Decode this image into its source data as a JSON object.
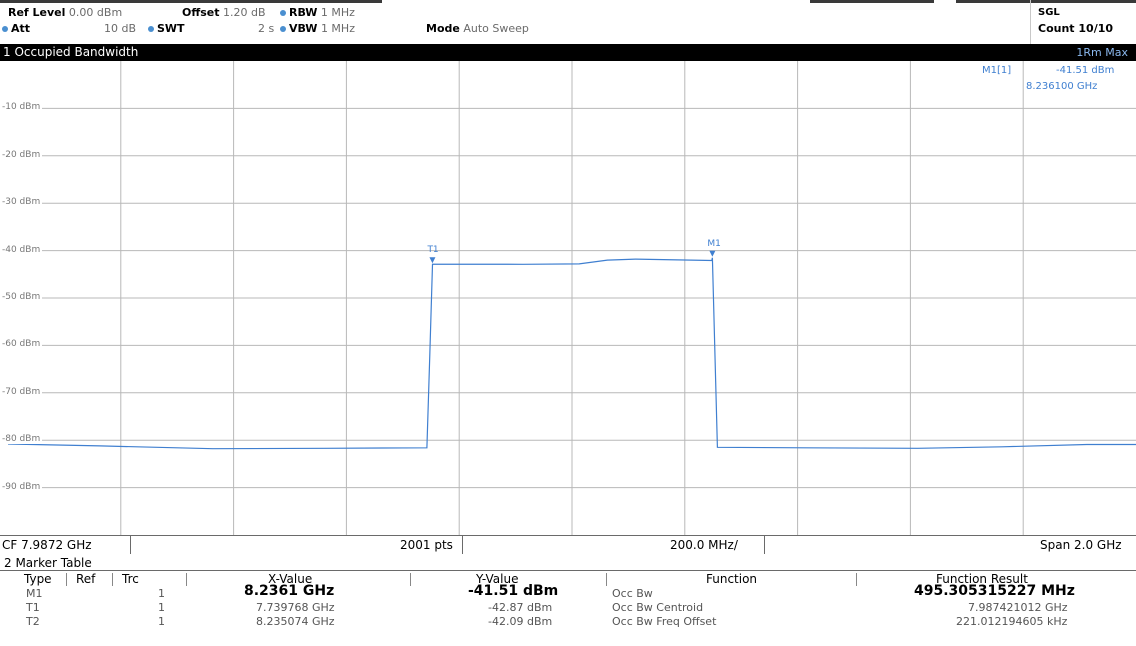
{
  "header": {
    "ref_level_label": "Ref Level",
    "ref_level_value": "0.00 dBm",
    "offset_label": "Offset",
    "offset_value": "1.20 dB",
    "rbw_label": "RBW",
    "rbw_value": "1 MHz",
    "att_label": "Att",
    "att_value": "10 dB",
    "swt_label": "SWT",
    "swt_value": "2 s",
    "vbw_label": "VBW",
    "vbw_value": "1 MHz",
    "mode_label": "Mode",
    "mode_value": "Auto Sweep",
    "sgl": "SGL",
    "count": "Count 10/10"
  },
  "window": {
    "title": "1 Occupied Bandwidth",
    "trace_mode": "1Rm Max"
  },
  "marker_readout": {
    "name": "M1[1]",
    "level": "-41.51 dBm",
    "freq": "8.236100 GHz"
  },
  "markers": {
    "t1": "T1",
    "m1": "M1"
  },
  "footer": {
    "cf": "CF 7.9872 GHz",
    "pts": "2001 pts",
    "div": "200.0 MHz/",
    "span": "Span 2.0 GHz"
  },
  "marker_table": {
    "title": "2 Marker Table",
    "headers": {
      "type": "Type",
      "ref": "Ref",
      "trc": "Trc",
      "x": "X-Value",
      "y": "Y-Value",
      "function": "Function",
      "result": "Function Result"
    },
    "rows": [
      {
        "type": "M1",
        "ref": "",
        "trc": "1",
        "x": "8.2361 GHz",
        "y": "-41.51 dBm",
        "function": "Occ Bw",
        "result": "495.305315227 MHz"
      },
      {
        "type": "T1",
        "ref": "",
        "trc": "1",
        "x": "7.739768 GHz",
        "y": "-42.87 dBm",
        "function": "Occ Bw Centroid",
        "result": "7.987421012 GHz"
      },
      {
        "type": "T2",
        "ref": "",
        "trc": "1",
        "x": "8.235074 GHz",
        "y": "-42.09 dBm",
        "function": "Occ Bw Freq Offset",
        "result": "221.012194605 kHz"
      }
    ]
  },
  "chart_data": {
    "type": "line",
    "title": "1 Occupied Bandwidth",
    "xlabel": "",
    "ylabel": "",
    "xlim": [
      6.9872,
      8.9872
    ],
    "ylim": [
      -100,
      0
    ],
    "y_ticks": [
      -10,
      -20,
      -30,
      -40,
      -50,
      -60,
      -70,
      -80,
      -90
    ],
    "y_tick_labels": [
      "-10 dBm",
      "-20 dBm",
      "-30 dBm",
      "-40 dBm",
      "-50 dBm",
      "-60 dBm",
      "-70 dBm",
      "-80 dBm",
      "-90 dBm"
    ],
    "grid": true,
    "series": [
      {
        "name": "1Rm Max",
        "color": "#3f7fd0",
        "x": [
          6.9872,
          7.15,
          7.35,
          7.55,
          7.73,
          7.735,
          7.7398,
          7.9,
          8.0,
          8.05,
          8.1,
          8.2351,
          8.2361,
          8.245,
          8.4,
          8.6,
          8.75,
          8.9,
          8.9872
        ],
        "y": [
          -80.8,
          -81.2,
          -81.8,
          -81.7,
          -81.6,
          -62.0,
          -42.87,
          -42.9,
          -42.8,
          -42.0,
          -41.8,
          -42.09,
          -41.51,
          -81.5,
          -81.6,
          -81.7,
          -81.4,
          -80.9,
          -80.9
        ]
      }
    ],
    "markers": [
      {
        "name": "T1",
        "x": 7.739768,
        "y": -42.87
      },
      {
        "name": "M1",
        "x": 8.2361,
        "y": -41.51
      }
    ]
  }
}
